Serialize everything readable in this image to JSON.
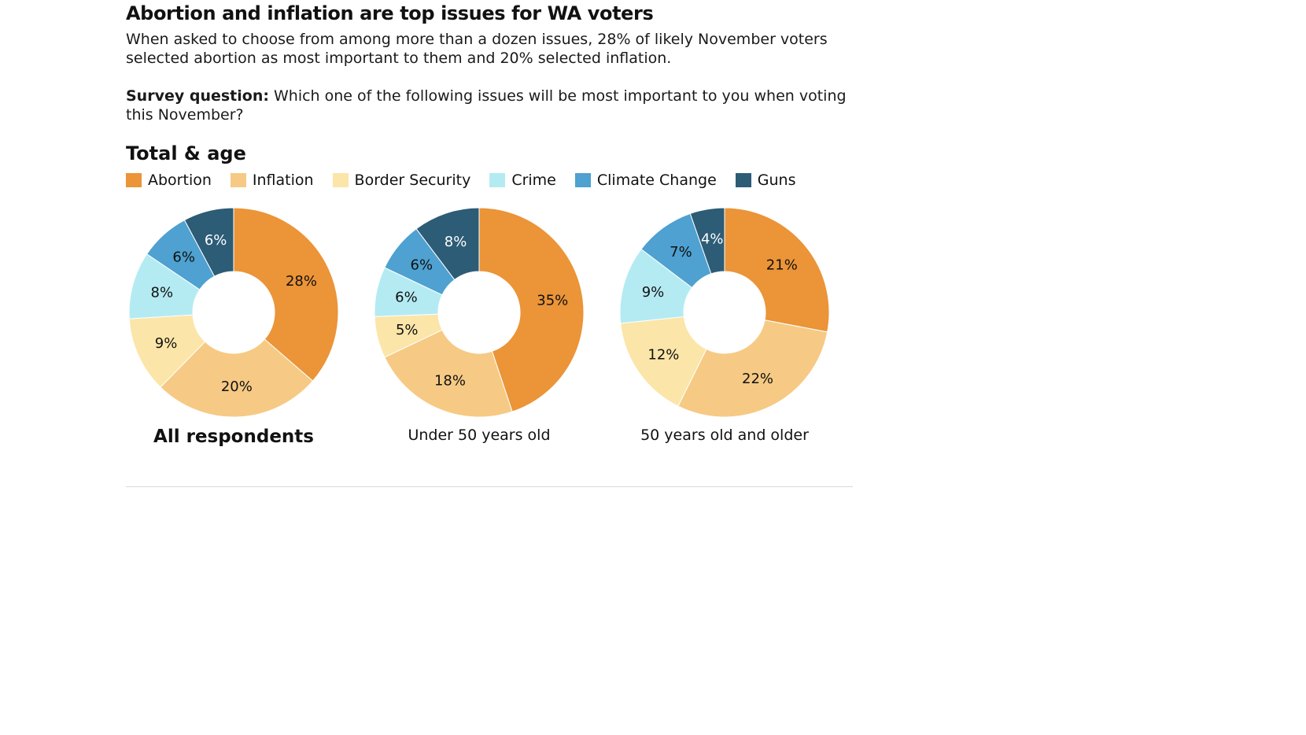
{
  "title": "Abortion and inflation are top issues for WA voters",
  "intro": "When asked to choose from among more than a dozen issues, 28% of likely November voters selected abortion as most important to them and 20% selected inflation.",
  "question_label": "Survey question:",
  "question_text": "Which one of the following issues will be most important to you when voting this November?",
  "section_title": "Total & age",
  "colors": {
    "Abortion": "#eb9438",
    "Inflation": "#f6ca84",
    "Border Security": "#fbe5a8",
    "Crime": "#b4ebf3",
    "Climate Change": "#4ea1d0",
    "Guns": "#2c5c76"
  },
  "label_colors": {
    "Abortion": "#111111",
    "Inflation": "#111111",
    "Border Security": "#111111",
    "Crime": "#111111",
    "Climate Change": "#111111",
    "Guns": "#ffffff"
  },
  "chart_data": [
    {
      "type": "pie",
      "donut": true,
      "title": "All respondents",
      "categories": [
        "Abortion",
        "Inflation",
        "Border Security",
        "Crime",
        "Climate Change",
        "Guns"
      ],
      "values": [
        28,
        20,
        9,
        8,
        6,
        6
      ],
      "labels": [
        "28%",
        "20%",
        "9%",
        "8%",
        "6%",
        "6%"
      ]
    },
    {
      "type": "pie",
      "donut": true,
      "title": "Under 50 years old",
      "categories": [
        "Abortion",
        "Inflation",
        "Border Security",
        "Crime",
        "Climate Change",
        "Guns"
      ],
      "values": [
        35,
        18,
        5,
        6,
        6,
        8
      ],
      "labels": [
        "35%",
        "18%",
        "5%",
        "6%",
        "6%",
        "8%"
      ]
    },
    {
      "type": "pie",
      "donut": true,
      "title": "50 years old and older",
      "categories": [
        "Abortion",
        "Inflation",
        "Border Security",
        "Crime",
        "Climate Change",
        "Guns"
      ],
      "values": [
        21,
        22,
        12,
        9,
        7,
        4
      ],
      "labels": [
        "21%",
        "22%",
        "12%",
        "9%",
        "7%",
        "4%"
      ]
    }
  ]
}
